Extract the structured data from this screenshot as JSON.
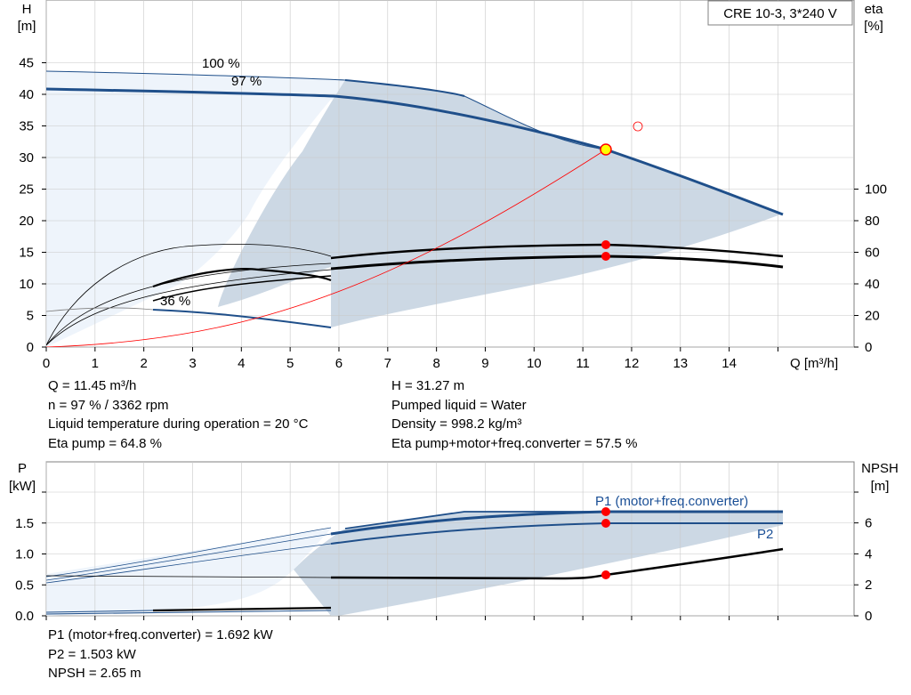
{
  "product_label": "CRE 10-3, 3*240 V",
  "top_chart": {
    "y_left_label": [
      "H",
      "[m]"
    ],
    "y_right_label": [
      "eta",
      "[%]"
    ],
    "x_label": "Q [m³/h]",
    "x_ticks": [
      "0",
      "1",
      "2",
      "3",
      "4",
      "5",
      "6",
      "7",
      "8",
      "9",
      "10",
      "11",
      "12",
      "13",
      "14"
    ],
    "y_left_ticks": [
      "0",
      "5",
      "10",
      "15",
      "20",
      "25",
      "30",
      "35",
      "40",
      "45"
    ],
    "y_right_ticks": [
      "0",
      "20",
      "40",
      "60",
      "80",
      "100"
    ],
    "curve_labels": [
      "100 %",
      "97 %",
      "36 %"
    ]
  },
  "top_info_left": [
    "Q = 11.45 m³/h",
    "n = 97 % / 3362 rpm",
    "Liquid temperature during operation = 20 °C",
    "Eta pump = 64.8 %"
  ],
  "top_info_right": [
    "H = 31.27 m",
    "Pumped liquid = Water",
    "Density = 998.2 kg/m³",
    "Eta pump+motor+freq.converter = 57.5 %"
  ],
  "bottom_chart": {
    "y_left_label": [
      "P",
      "[kW]"
    ],
    "y_right_label": [
      "NPSH",
      "[m]"
    ],
    "y_left_ticks": [
      "0.0",
      "0.5",
      "1.0",
      "1.5"
    ],
    "y_right_ticks": [
      "0",
      "2",
      "4",
      "6"
    ],
    "curve_labels": [
      "P1 (motor+freq.converter)",
      "P2"
    ]
  },
  "bottom_info": [
    "P1 (motor+freq.converter) = 1.692 kW",
    "P2 = 1.503 kW",
    "NPSH = 2.65 m"
  ],
  "colors": {
    "curve_blue": "#1f4f8a",
    "label_blue": "#1a4f96",
    "area_light": "#eef4fb",
    "area_gray": "#ccd8e4",
    "point_red": "#ff0000"
  },
  "chart_data": [
    {
      "type": "line",
      "title": "",
      "xlabel": "Q [m³/h]",
      "ylabel": "H [m]",
      "y2label": "eta [%]",
      "xlim": [
        0,
        16
      ],
      "ylim": [
        0,
        50
      ],
      "y2lim": [
        0,
        100
      ],
      "x_ticks": [
        0,
        1,
        2,
        3,
        4,
        5,
        6,
        7,
        8,
        9,
        10,
        11,
        12,
        13,
        14
      ],
      "series": [
        {
          "name": "100 %",
          "axis": "H",
          "x": [
            0,
            6.1,
            8.6,
            11.45,
            15.1
          ],
          "y": [
            43.7,
            42.2,
            39.6,
            31.2,
            21.0
          ]
        },
        {
          "name": "97 %",
          "axis": "H",
          "x": [
            0,
            6,
            9,
            11.45,
            15.1
          ],
          "y": [
            40.8,
            39.5,
            36.5,
            31.27,
            21.0
          ]
        },
        {
          "name": "36 %",
          "axis": "H",
          "x": [
            2.2,
            4,
            5.8
          ],
          "y": [
            5.8,
            5.2,
            3.0
          ]
        },
        {
          "axis": "eta",
          "x": [
            0,
            2,
            4,
            6,
            8,
            10,
            11.45,
            13,
            15.1
          ],
          "y": [
            0,
            38,
            51,
            54,
            59,
            61.5,
            64.8,
            60,
            57.5
          ]
        },
        {
          "axis": "eta",
          "x": [
            0,
            2,
            4,
            6,
            8,
            10,
            11.45,
            13,
            15.1
          ],
          "y": [
            0,
            33,
            44,
            49,
            54,
            56.5,
            57.5,
            56,
            51
          ]
        },
        {
          "axis": "H",
          "x": [
            0,
            2,
            4,
            6,
            8,
            10,
            11.45
          ],
          "y": [
            0,
            1.2,
            3.5,
            8.5,
            15.5,
            24,
            31.27
          ]
        }
      ],
      "operating_point": {
        "Q": 11.45,
        "H": 31.27,
        "eta_pump": 64.8,
        "eta_total": 57.5
      }
    },
    {
      "type": "line",
      "title": "",
      "xlabel": "Q [m³/h]",
      "ylabel": "P [kW]",
      "y2label": "NPSH [m]",
      "xlim": [
        0,
        16
      ],
      "ylim": [
        0,
        2.0
      ],
      "y2lim": [
        0,
        8
      ],
      "series": [
        {
          "name": "P1 (motor+freq.converter)",
          "axis": "P",
          "x": [
            0,
            6,
            8.5,
            11.45,
            15.1
          ],
          "y": [
            0.65,
            1.3,
            1.55,
            1.692,
            1.69
          ]
        },
        {
          "name": "P2",
          "axis": "P",
          "x": [
            0,
            6,
            8.5,
            11.45,
            15.1
          ],
          "y": [
            0.6,
            1.18,
            1.38,
            1.503,
            1.503
          ]
        },
        {
          "name": "NPSH",
          "axis": "NPSH",
          "x": [
            0,
            6,
            9,
            11.45,
            13,
            15.1
          ],
          "y": [
            2.4,
            2.4,
            2.35,
            2.65,
            3.3,
            4.2
          ]
        }
      ],
      "operating_point": {
        "P1": 1.692,
        "P2": 1.503,
        "NPSH": 2.65
      }
    }
  ]
}
